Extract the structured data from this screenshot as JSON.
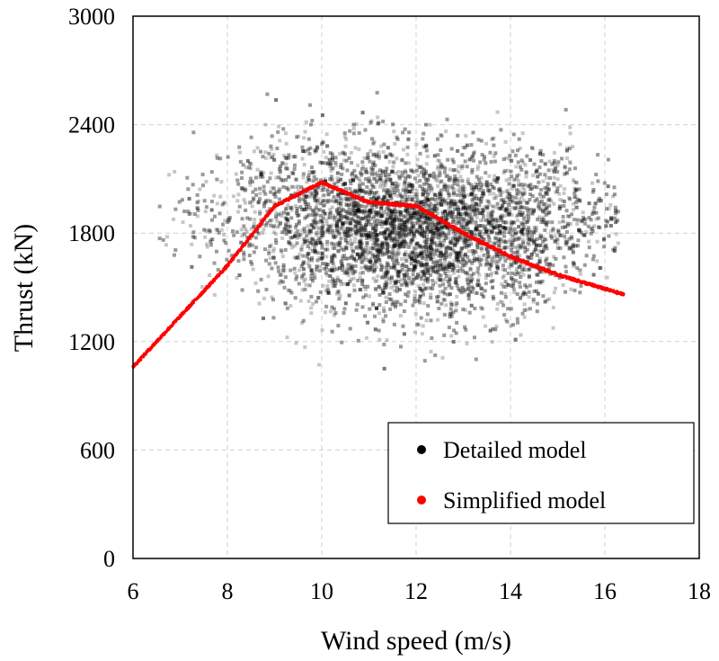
{
  "chart_data": {
    "type": "scatter",
    "title": "",
    "xlabel": "Wind speed (m/s)",
    "ylabel": "Thrust (kN)",
    "xlim": [
      6,
      18
    ],
    "ylim": [
      0,
      3000
    ],
    "xticks": [
      6,
      8,
      10,
      12,
      14,
      16,
      18
    ],
    "yticks": [
      0,
      600,
      1200,
      1800,
      2400,
      3000
    ],
    "grid": true,
    "legend_position": "bottom-right",
    "series": [
      {
        "name": "Detailed model",
        "color": "#000000",
        "marker": "square",
        "description_points": "dense scatter cloud",
        "cloud": {
          "x_range": [
            6.5,
            16.3
          ],
          "centers": [
            {
              "x": 7.0,
              "y": 1870
            },
            {
              "x": 8.0,
              "y": 1900
            },
            {
              "x": 9.0,
              "y": 1880
            },
            {
              "x": 10.0,
              "y": 1850
            },
            {
              "x": 11.0,
              "y": 1820
            },
            {
              "x": 12.0,
              "y": 1800
            },
            {
              "x": 13.0,
              "y": 1800
            },
            {
              "x": 14.0,
              "y": 1800
            },
            {
              "x": 15.0,
              "y": 1850
            },
            {
              "x": 16.0,
              "y": 1880
            }
          ],
          "y_min": 1050,
          "y_max": 2580
        }
      },
      {
        "name": "Simplified model",
        "color": "#ff0000",
        "marker": "circle",
        "x": [
          6.0,
          7.0,
          8.0,
          9.0,
          10.0,
          11.0,
          12.0,
          13.0,
          14.0,
          15.0,
          16.4
        ],
        "y": [
          1060,
          1340,
          1620,
          1950,
          2080,
          1970,
          1950,
          1800,
          1670,
          1570,
          1460
        ]
      }
    ]
  }
}
